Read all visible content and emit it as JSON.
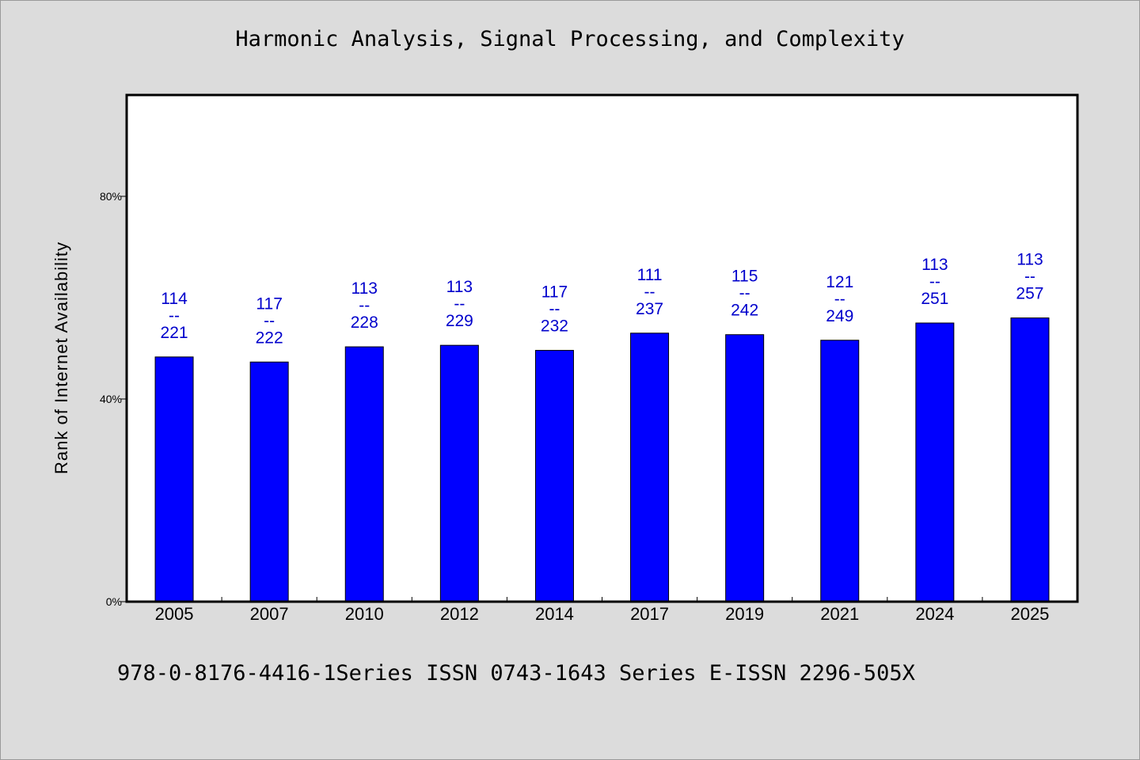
{
  "chart_data": {
    "type": "bar",
    "title": "Harmonic Analysis, Signal Processing, and Complexity",
    "ylabel": "Rank of Internet Availability",
    "xlabel": "",
    "categories": [
      "2005",
      "2007",
      "2010",
      "2012",
      "2014",
      "2017",
      "2019",
      "2021",
      "2024",
      "2025"
    ],
    "values": [
      48.3,
      47.3,
      50.3,
      50.6,
      49.6,
      53.0,
      52.7,
      51.6,
      55.0,
      56.0
    ],
    "data_labels": [
      [
        "114",
        "--",
        "221"
      ],
      [
        "117",
        "--",
        "222"
      ],
      [
        "113",
        "--",
        "228"
      ],
      [
        "113",
        "--",
        "229"
      ],
      [
        "117",
        "--",
        "232"
      ],
      [
        "111",
        "--",
        "237"
      ],
      [
        "115",
        "--",
        "242"
      ],
      [
        "121",
        "--",
        "249"
      ],
      [
        "113",
        "--",
        "251"
      ],
      [
        "113",
        "--",
        "257"
      ]
    ],
    "y_ticks": [
      0,
      40,
      80
    ],
    "y_tick_labels": [
      "0%",
      "40%",
      "80%"
    ],
    "ylim": [
      0,
      100
    ],
    "grid": false,
    "legend": "none",
    "bar_color": "#0000ff",
    "label_color": "#0000cc"
  },
  "footer": {
    "text": "978-0-8176-4416-1Series ISSN 0743-1643 Series E-ISSN 2296-505X"
  }
}
